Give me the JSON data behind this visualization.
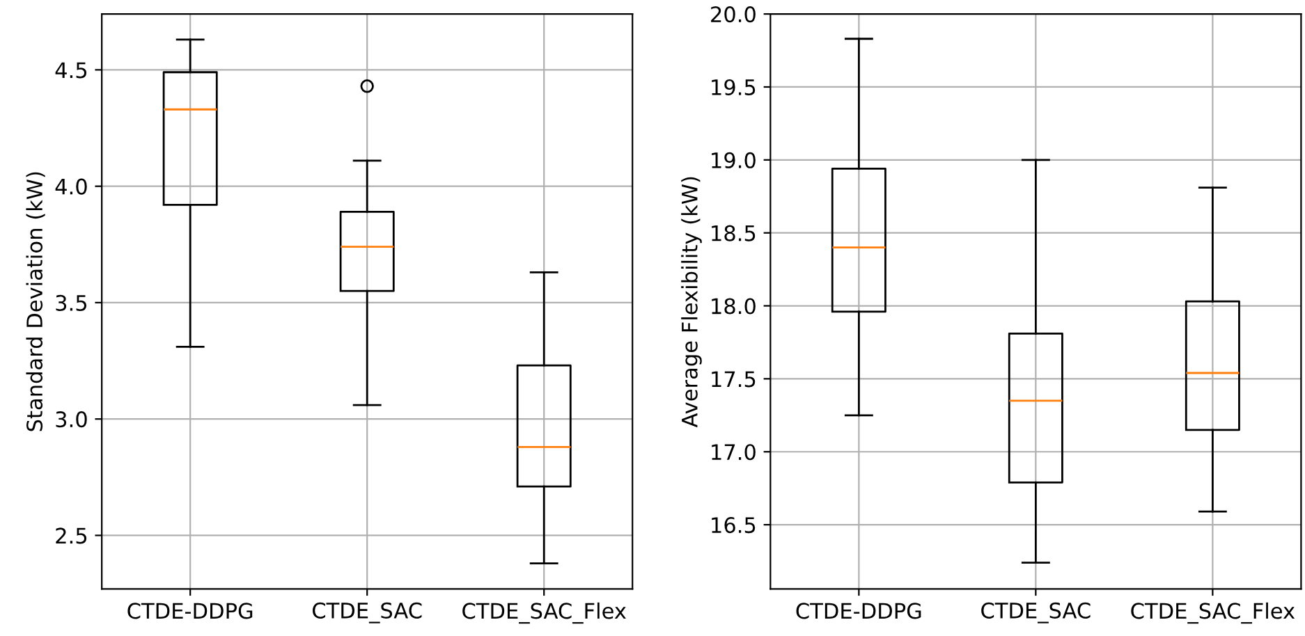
{
  "chart_data": [
    {
      "type": "box",
      "ylabel": "Standard Deviation (kW)",
      "categories": [
        "CTDE-DDPG",
        "CTDE_SAC",
        "CTDE_SAC_Flex"
      ],
      "boxes": [
        {
          "low": 3.31,
          "q1": 3.92,
          "median": 4.33,
          "q3": 4.49,
          "high": 4.63
        },
        {
          "low": 3.06,
          "q1": 3.55,
          "median": 3.74,
          "q3": 3.89,
          "high": 4.11,
          "outliers": [
            4.43
          ]
        },
        {
          "low": 2.38,
          "q1": 2.71,
          "median": 2.88,
          "q3": 3.23,
          "high": 3.63
        }
      ],
      "ylim": [
        2.27,
        4.74
      ],
      "yticks": [
        {
          "value": 2.5,
          "label": "2.5"
        },
        {
          "value": 3.0,
          "label": "3.0"
        },
        {
          "value": 3.5,
          "label": "3.5"
        },
        {
          "value": 4.0,
          "label": "4.0"
        },
        {
          "value": 4.5,
          "label": "4.5"
        }
      ],
      "grid": true
    },
    {
      "type": "box",
      "ylabel": "Average Flexibility (kW)",
      "categories": [
        "CTDE-DDPG",
        "CTDE_SAC",
        "CTDE_SAC_Flex"
      ],
      "boxes": [
        {
          "low": 17.25,
          "q1": 17.96,
          "median": 18.4,
          "q3": 18.94,
          "high": 19.83
        },
        {
          "low": 16.24,
          "q1": 16.79,
          "median": 17.35,
          "q3": 17.81,
          "high": 19.0
        },
        {
          "low": 16.59,
          "q1": 17.15,
          "median": 17.54,
          "q3": 18.03,
          "high": 18.81
        }
      ],
      "ylim": [
        16.06,
        20.0
      ],
      "yticks": [
        {
          "value": 16.5,
          "label": "16.5"
        },
        {
          "value": 17.0,
          "label": "17.0"
        },
        {
          "value": 17.5,
          "label": "17.5"
        },
        {
          "value": 18.0,
          "label": "18.0"
        },
        {
          "value": 18.5,
          "label": "18.5"
        },
        {
          "value": 19.0,
          "label": "19.0"
        },
        {
          "value": 19.5,
          "label": "19.5"
        },
        {
          "value": 20.0,
          "label": "20.0"
        }
      ],
      "grid": true
    }
  ]
}
